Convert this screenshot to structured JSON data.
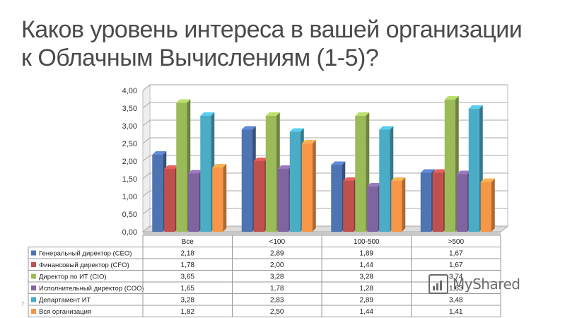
{
  "slide": {
    "title_line1": "Каков уровень интереса в вашей организации",
    "title_line2": "к Облачным Вычислениям (1-5)?",
    "page_number": "7",
    "watermark": "MyShared"
  },
  "chart_data": {
    "type": "bar",
    "categories": [
      "Все",
      "<100",
      "100-500",
      ">500"
    ],
    "ylim": [
      0,
      4
    ],
    "y_ticks": [
      "0,00",
      "0,50",
      "1,00",
      "1,50",
      "2,00",
      "2,50",
      "3,00",
      "3,50",
      "4,00"
    ],
    "grid": true,
    "legend": "data-table",
    "series": [
      {
        "name": "Генеральный директор (CEO)",
        "color": "#4f74b3",
        "values": [
          2.18,
          2.89,
          1.89,
          1.67
        ],
        "labels": [
          "2,18",
          "2,89",
          "1,89",
          "1,67"
        ]
      },
      {
        "name": "Финансовый директор (CFO)",
        "color": "#c0504d",
        "values": [
          1.78,
          2.0,
          1.44,
          1.67
        ],
        "labels": [
          "1,78",
          "2,00",
          "1,44",
          "1,67"
        ]
      },
      {
        "name": "Директор по ИТ (CIO)",
        "color": "#9bbb59",
        "values": [
          3.65,
          3.28,
          3.28,
          3.74
        ],
        "labels": [
          "3,65",
          "3,28",
          "3,28",
          "3,74"
        ]
      },
      {
        "name": "Исполнительный директор (COO)",
        "color": "#8064a2",
        "values": [
          1.65,
          1.78,
          1.28,
          1.63
        ],
        "labels": [
          "1,65",
          "1,78",
          "1,28",
          "1,63"
        ]
      },
      {
        "name": "Департамент ИТ",
        "color": "#4bacc6",
        "values": [
          3.28,
          2.83,
          2.89,
          3.48
        ],
        "labels": [
          "3,28",
          "2,83",
          "2,89",
          "3,48"
        ]
      },
      {
        "name": "Вся организация",
        "color": "#f79646",
        "values": [
          1.82,
          2.5,
          1.44,
          1.41
        ],
        "labels": [
          "1,82",
          "2,50",
          "1,44",
          "1,41"
        ]
      }
    ]
  }
}
